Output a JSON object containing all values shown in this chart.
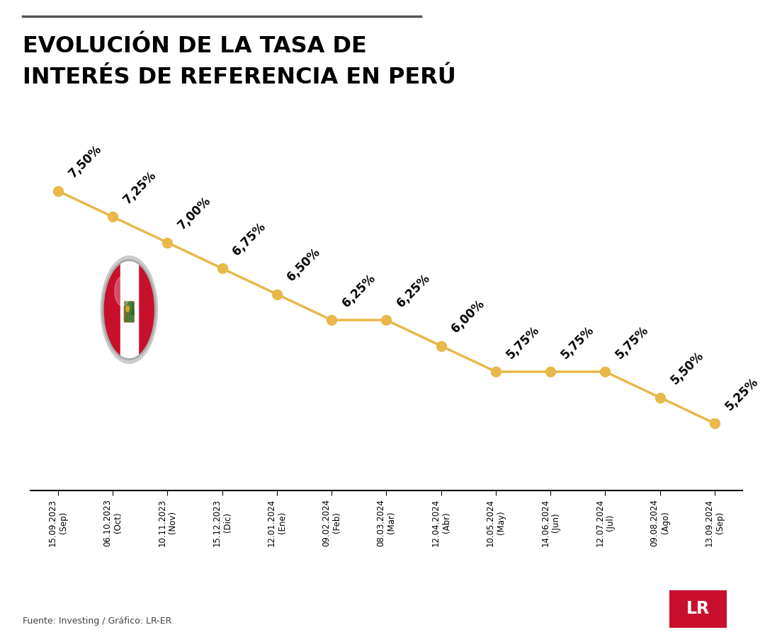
{
  "title_line1": "EVOLUCIÓN DE LA TASA DE",
  "title_line2": "INTERÉS DE REFERENCIA EN PERÚ",
  "dates": [
    "15.09.2023\n(Sep)",
    "06.10.2023\n(Oct)",
    "10.11.2023\n(Nov)",
    "15.12.2023\n(Dic)",
    "12.01.2024\n(Ene)",
    "09.02.2024\n(Feb)",
    "08.03.2024\n(Mar)",
    "12.04.2024\n(Abr)",
    "10.05.2024\n(May)",
    "14.06.2024\n(Jun)",
    "12.07.2024\n(Jul)",
    "09.08.2024\n(Ago)",
    "13.09.2024\n(Sep)"
  ],
  "values": [
    7.5,
    7.25,
    7.0,
    6.75,
    6.5,
    6.25,
    6.25,
    6.0,
    5.75,
    5.75,
    5.75,
    5.5,
    5.25
  ],
  "labels": [
    "7,50%",
    "7,25%",
    "7,00%",
    "6,75%",
    "6,50%",
    "6,25%",
    "6,25%",
    "6,00%",
    "5,75%",
    "5,75%",
    "5,75%",
    "5,50%",
    "5,25%"
  ],
  "line_color": "#E8B84B",
  "marker_color": "#E8B84B",
  "background_color": "#FFFFFF",
  "title_color": "#000000",
  "label_color": "#000000",
  "tick_color": "#000000",
  "source_text": "Fuente: Investing / Gráfico: LR-ER",
  "lr_box_color": "#C8102E",
  "lr_text": "LR",
  "top_line_color": "#555555",
  "flag_red": "#C8102E",
  "flag_white": "#FFFFFF",
  "flag_border": "#CCCCCC"
}
